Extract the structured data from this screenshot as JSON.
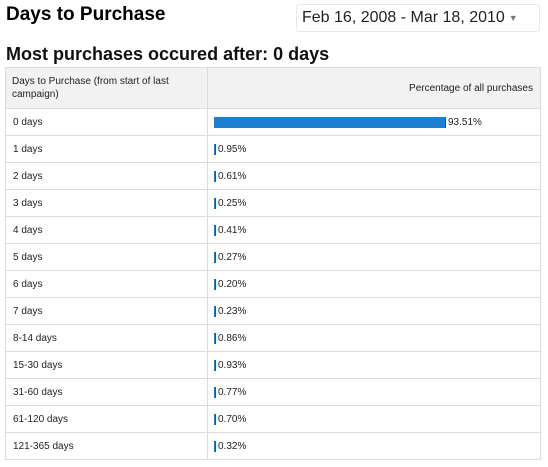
{
  "header": {
    "title": "Days to Purchase",
    "date_range": "Feb 16, 2008 - Mar 18, 2010",
    "date_range_icon": "dropdown-arrow-icon"
  },
  "summary": {
    "headline": "Most purchases occured after: 0 days"
  },
  "table": {
    "col_days": "Days to Purchase (from start of last campaign)",
    "col_pct": "Percentage of all purchases",
    "bar_color": "#1d7fcf",
    "rows": [
      {
        "days": "0 days",
        "pct": "93.51%",
        "value": 93.51
      },
      {
        "days": "1 days",
        "pct": "0.95%",
        "value": 0.95
      },
      {
        "days": "2 days",
        "pct": "0.61%",
        "value": 0.61
      },
      {
        "days": "3 days",
        "pct": "0.25%",
        "value": 0.25
      },
      {
        "days": "4 days",
        "pct": "0.41%",
        "value": 0.41
      },
      {
        "days": "5 days",
        "pct": "0.27%",
        "value": 0.27
      },
      {
        "days": "6 days",
        "pct": "0.20%",
        "value": 0.2
      },
      {
        "days": "7 days",
        "pct": "0.23%",
        "value": 0.23
      },
      {
        "days": "8-14 days",
        "pct": "0.86%",
        "value": 0.86
      },
      {
        "days": "15-30 days",
        "pct": "0.93%",
        "value": 0.93
      },
      {
        "days": "31-60 days",
        "pct": "0.77%",
        "value": 0.77
      },
      {
        "days": "61-120 days",
        "pct": "0.70%",
        "value": 0.7
      },
      {
        "days": "121-365 days",
        "pct": "0.32%",
        "value": 0.32
      }
    ]
  }
}
